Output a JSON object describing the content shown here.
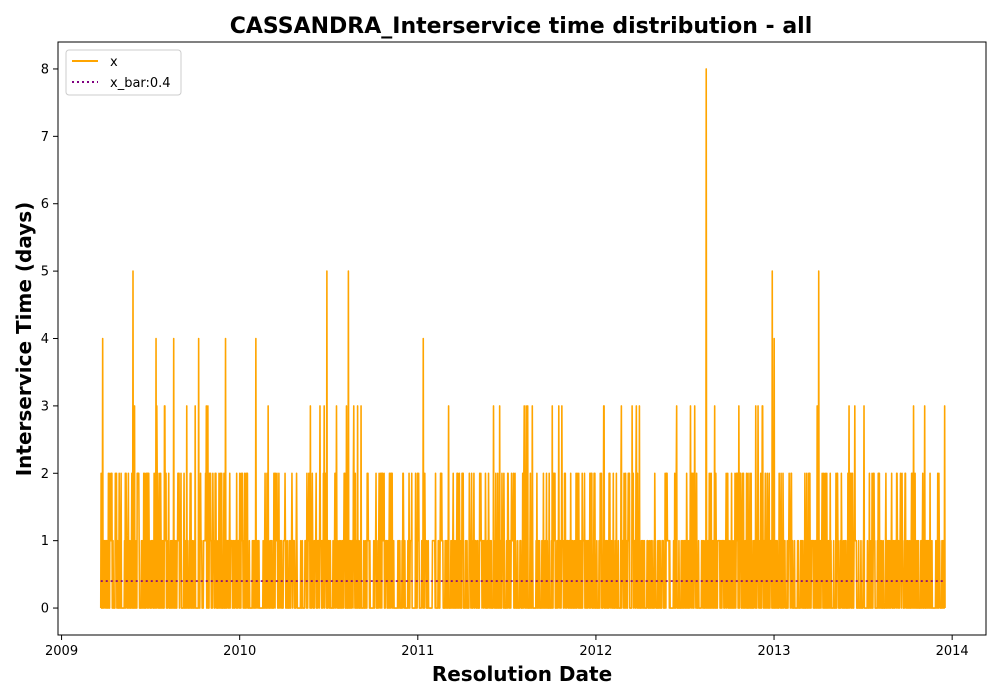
{
  "chart_data": {
    "type": "line",
    "title": "CASSANDRA_Interservice time distribution - all",
    "xlabel": "Resolution Date",
    "ylabel": "Interservice Time (days)",
    "xlim": [
      2008.98,
      2014.19
    ],
    "ylim": [
      -0.4,
      8.4
    ],
    "xticks": [
      2009,
      2010,
      2011,
      2012,
      2013,
      2014
    ],
    "yticks": [
      0,
      1,
      2,
      3,
      4,
      5,
      6,
      7,
      8
    ],
    "grid": false,
    "legend_position": "top-left",
    "series": [
      {
        "name": "x",
        "color": "#ffa500",
        "style": "solid",
        "x_start": 2009.22,
        "x_end": 2013.96,
        "y_values_approx_range": [
          0,
          8
        ],
        "peaks": [
          {
            "x": 2009.23,
            "y": 4
          },
          {
            "x": 2009.4,
            "y": 5
          },
          {
            "x": 2009.53,
            "y": 4
          },
          {
            "x": 2009.63,
            "y": 4
          },
          {
            "x": 2009.77,
            "y": 4
          },
          {
            "x": 2009.92,
            "y": 4
          },
          {
            "x": 2010.09,
            "y": 4
          },
          {
            "x": 2010.49,
            "y": 5
          },
          {
            "x": 2010.61,
            "y": 5
          },
          {
            "x": 2011.03,
            "y": 4
          },
          {
            "x": 2012.62,
            "y": 8
          },
          {
            "x": 2012.99,
            "y": 5
          },
          {
            "x": 2013.0,
            "y": 4
          },
          {
            "x": 2013.25,
            "y": 5
          }
        ]
      },
      {
        "name": "x_bar:0.4",
        "color": "#800080",
        "style": "dotted",
        "value": 0.4
      }
    ]
  }
}
